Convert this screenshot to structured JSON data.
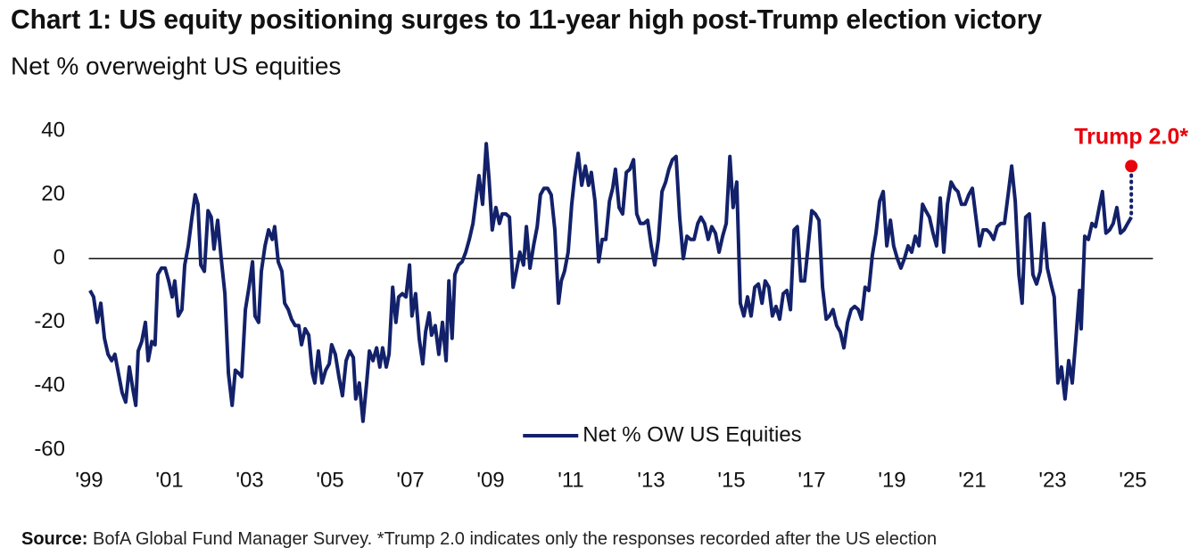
{
  "chart_data": {
    "type": "line",
    "title": "Chart 1: US equity positioning surges to 11-year high post-Trump election victory",
    "subtitle": "Net % overweight US equities",
    "source_label": "Source:",
    "source": "BofA Global Fund Manager Survey. *Trump 2.0 indicates only the responses recorded after the US election",
    "x": [
      1999.02,
      1999.11,
      1999.2,
      1999.29,
      1999.38,
      1999.47,
      1999.56,
      1999.64,
      1999.73,
      1999.82,
      1999.91,
      2000.0,
      2000.09,
      2000.16,
      2000.22,
      2000.31,
      2000.4,
      2000.47,
      2000.56,
      2000.64,
      2000.71,
      2000.8,
      2000.89,
      2000.98,
      2001.07,
      2001.13,
      2001.22,
      2001.31,
      2001.38,
      2001.47,
      2001.56,
      2001.64,
      2001.71,
      2001.78,
      2001.87,
      2001.96,
      2002.04,
      2002.11,
      2002.2,
      2002.29,
      2002.38,
      2002.47,
      2002.56,
      2002.64,
      2002.73,
      2002.8,
      2002.89,
      2002.98,
      2003.07,
      2003.13,
      2003.22,
      2003.29,
      2003.38,
      2003.47,
      2003.56,
      2003.62,
      2003.71,
      2003.8,
      2003.87,
      2003.96,
      2004.04,
      2004.13,
      2004.22,
      2004.29,
      2004.38,
      2004.47,
      2004.56,
      2004.62,
      2004.71,
      2004.8,
      2004.89,
      2004.98,
      2005.04,
      2005.13,
      2005.22,
      2005.31,
      2005.4,
      2005.49,
      2005.58,
      2005.64,
      2005.73,
      2005.82,
      2005.91,
      2005.98,
      2006.07,
      2006.16,
      2006.24,
      2006.31,
      2006.4,
      2006.47,
      2006.56,
      2006.64,
      2006.71,
      2006.8,
      2006.89,
      2006.98,
      2007.04,
      2007.13,
      2007.22,
      2007.31,
      2007.38,
      2007.47,
      2007.53,
      2007.62,
      2007.71,
      2007.8,
      2007.89,
      2007.96,
      2008.04,
      2008.11,
      2008.2,
      2008.29,
      2008.38,
      2008.47,
      2008.56,
      2008.64,
      2008.71,
      2008.8,
      2008.89,
      2008.96,
      2009.04,
      2009.13,
      2009.22,
      2009.29,
      2009.38,
      2009.47,
      2009.56,
      2009.64,
      2009.73,
      2009.82,
      2009.89,
      2009.98,
      2010.07,
      2010.16,
      2010.24,
      2010.33,
      2010.42,
      2010.51,
      2010.6,
      2010.69,
      2010.76,
      2010.84,
      2010.93,
      2011.02,
      2011.09,
      2011.18,
      2011.27,
      2011.36,
      2011.44,
      2011.51,
      2011.6,
      2011.69,
      2011.78,
      2011.87,
      2011.96,
      2012.04,
      2012.11,
      2012.2,
      2012.29,
      2012.38,
      2012.47,
      2012.56,
      2012.64,
      2012.73,
      2012.82,
      2012.91,
      2013.0,
      2013.09,
      2013.18,
      2013.27,
      2013.36,
      2013.44,
      2013.53,
      2013.62,
      2013.71,
      2013.8,
      2013.89,
      2013.98,
      2014.07,
      2014.16,
      2014.24,
      2014.33,
      2014.42,
      2014.51,
      2014.6,
      2014.69,
      2014.78,
      2014.87,
      2014.96,
      2015.04,
      2015.13,
      2015.22,
      2015.31,
      2015.4,
      2015.49,
      2015.58,
      2015.67,
      2015.76,
      2015.84,
      2015.93,
      2016.02,
      2016.11,
      2016.2,
      2016.29,
      2016.38,
      2016.47,
      2016.56,
      2016.64,
      2016.73,
      2016.82,
      2016.91,
      2017.0,
      2017.09,
      2017.18,
      2017.27,
      2017.36,
      2017.44,
      2017.53,
      2017.62,
      2017.71,
      2017.8,
      2017.89,
      2017.98,
      2018.07,
      2018.16,
      2018.24,
      2018.33,
      2018.42,
      2018.51,
      2018.6,
      2018.69,
      2018.78,
      2018.87,
      2018.96,
      2019.04,
      2019.13,
      2019.22,
      2019.31,
      2019.4,
      2019.49,
      2019.58,
      2019.67,
      2019.76,
      2019.84,
      2019.93,
      2020.02,
      2020.11,
      2020.2,
      2020.29,
      2020.38,
      2020.47,
      2020.56,
      2020.64,
      2020.73,
      2020.82,
      2020.91,
      2021.0,
      2021.09,
      2021.18,
      2021.27,
      2021.36,
      2021.44,
      2021.53,
      2021.62,
      2021.71,
      2021.8,
      2021.89,
      2021.98,
      2022.07,
      2022.16,
      2022.24,
      2022.33,
      2022.42,
      2022.51,
      2022.6,
      2022.69,
      2022.78,
      2022.87,
      2022.96,
      2023.04,
      2023.13,
      2023.22,
      2023.31,
      2023.4,
      2023.49,
      2023.58,
      2023.67,
      2023.71,
      2023.8,
      2023.89,
      2023.98,
      2024.07,
      2024.16,
      2024.24,
      2024.33,
      2024.42,
      2024.51,
      2024.6,
      2024.69,
      2024.78,
      2024.87,
      2024.96
    ],
    "series": [
      {
        "name": "Net % OW US Equities",
        "color": "#13216a",
        "values": [
          -10,
          -12,
          -20,
          -14,
          -25,
          -30,
          -32,
          -30,
          -36,
          -42,
          -45,
          -34,
          -41,
          -46,
          -29,
          -26,
          -20,
          -32,
          -26,
          -27,
          -5,
          -3,
          -3,
          -7,
          -12,
          -7,
          -18,
          -16,
          -2,
          4,
          13,
          20,
          17,
          -2,
          -4,
          15,
          13,
          3,
          12,
          0,
          -11,
          -36,
          -46,
          -35,
          -36,
          -37,
          -16,
          -9,
          -1,
          -18,
          -20,
          -4,
          4,
          9,
          6,
          10,
          -1,
          -4,
          -14,
          -16,
          -19,
          -21,
          -21,
          -27,
          -22,
          -24,
          -36,
          -39,
          -29,
          -39,
          -35,
          -33,
          -27,
          -30,
          -37,
          -43,
          -32,
          -29,
          -31,
          -44,
          -39,
          -51,
          -39,
          -29,
          -32,
          -28,
          -34,
          -28,
          -34,
          -30,
          -9,
          -20,
          -12,
          -11,
          -12,
          -2,
          -18,
          -11,
          -25,
          -33,
          -23,
          -17,
          -24,
          -21,
          -30,
          -20,
          -32,
          -7,
          -25,
          -5,
          -2,
          -1,
          2,
          6,
          11,
          19,
          26,
          17,
          36,
          25,
          9,
          16,
          11,
          14,
          14,
          13,
          -9,
          -4,
          2,
          -2,
          10,
          -3,
          4,
          10,
          20,
          22,
          22,
          20,
          9,
          -14,
          -7,
          -4,
          2,
          17,
          25,
          33,
          23,
          29,
          23,
          27,
          18,
          -1,
          6,
          6,
          18,
          22,
          28,
          16,
          14,
          27,
          28,
          31,
          14,
          11,
          11,
          12,
          4,
          -2,
          6,
          21,
          24,
          28,
          31,
          32,
          13,
          0,
          7,
          6,
          6,
          11,
          13,
          11,
          6,
          10,
          8,
          2,
          7,
          11,
          32,
          16,
          24,
          -14,
          -18,
          -12,
          -18,
          -9,
          -8,
          -14,
          -7,
          -9,
          -18,
          -15,
          -19,
          -11,
          -10,
          -16,
          9,
          10,
          -7,
          -7,
          4,
          15,
          14,
          12,
          -9,
          -19,
          -18,
          -16,
          -21,
          -23,
          -28,
          -20,
          -16,
          -15,
          -16,
          -19,
          -9,
          -10,
          1,
          8,
          18,
          21,
          4,
          12,
          4,
          0,
          -3,
          0,
          4,
          2,
          7,
          4,
          17,
          15,
          13,
          8,
          4,
          19,
          2,
          17,
          24,
          22,
          21,
          17,
          17,
          20,
          22,
          13,
          4,
          9,
          9,
          8,
          6,
          10,
          11,
          11,
          20,
          29,
          18,
          -5,
          -14,
          13,
          14,
          -5,
          -8,
          -4,
          11,
          -3,
          -8,
          -12,
          -39,
          -34,
          -44,
          -32,
          -39,
          -25,
          -10,
          -22,
          7,
          6,
          11,
          10,
          16,
          21,
          8,
          9,
          11,
          16,
          8,
          9,
          11,
          13
        ]
      }
    ],
    "annotation": {
      "text": "Trump 2.0*",
      "x": 2024.96,
      "y": 29,
      "color": "#e8000b"
    },
    "xlim": [
      1998.9,
      2025.5
    ],
    "xticks": [
      {
        "value": 1999,
        "label": "'99"
      },
      {
        "value": 2001,
        "label": "'01"
      },
      {
        "value": 2003,
        "label": "'03"
      },
      {
        "value": 2005,
        "label": "'05"
      },
      {
        "value": 2007,
        "label": "'07"
      },
      {
        "value": 2009,
        "label": "'09"
      },
      {
        "value": 2011,
        "label": "'11"
      },
      {
        "value": 2013,
        "label": "'13"
      },
      {
        "value": 2015,
        "label": "'15"
      },
      {
        "value": 2017,
        "label": "'17"
      },
      {
        "value": 2019,
        "label": "'19"
      },
      {
        "value": 2021,
        "label": "'21"
      },
      {
        "value": 2023,
        "label": "'23"
      },
      {
        "value": 2025,
        "label": "'25"
      }
    ],
    "ylim": [
      -60,
      40
    ],
    "yticks": [
      -60,
      -40,
      -20,
      0,
      20,
      40
    ],
    "zero_line": true,
    "grid": false,
    "legend": "bottom"
  }
}
